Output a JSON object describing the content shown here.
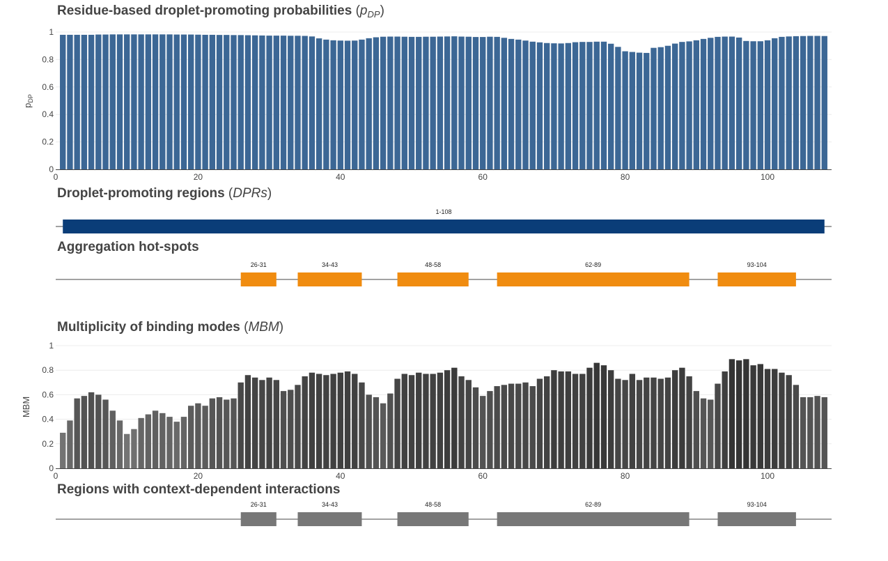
{
  "chart_data": [
    {
      "type": "bar",
      "id": "pdp",
      "title": "Residue-based droplet-promoting probabilities",
      "title_paren_var": "p",
      "title_paren_sub": "DP",
      "ylabel_main": "p",
      "ylabel_sub": "DP",
      "xlabel": "",
      "xlim": [
        0,
        109
      ],
      "ylim": [
        0,
        1
      ],
      "xticks": [
        0,
        20,
        40,
        60,
        80,
        100
      ],
      "yticks": [
        "0",
        "0.2",
        "0.4",
        "0.6",
        "0.8",
        "1"
      ],
      "grid": true,
      "color": "#3c6795",
      "x": [
        1,
        2,
        3,
        4,
        5,
        6,
        7,
        8,
        9,
        10,
        11,
        12,
        13,
        14,
        15,
        16,
        17,
        18,
        19,
        20,
        21,
        22,
        23,
        24,
        25,
        26,
        27,
        28,
        29,
        30,
        31,
        32,
        33,
        34,
        35,
        36,
        37,
        38,
        39,
        40,
        41,
        42,
        43,
        44,
        45,
        46,
        47,
        48,
        49,
        50,
        51,
        52,
        53,
        54,
        55,
        56,
        57,
        58,
        59,
        60,
        61,
        62,
        63,
        64,
        65,
        66,
        67,
        68,
        69,
        70,
        71,
        72,
        73,
        74,
        75,
        76,
        77,
        78,
        79,
        80,
        81,
        82,
        83,
        84,
        85,
        86,
        87,
        88,
        89,
        90,
        91,
        92,
        93,
        94,
        95,
        96,
        97,
        98,
        99,
        100,
        101,
        102,
        103,
        104,
        105,
        106,
        107,
        108
      ],
      "values": [
        0.98,
        0.98,
        0.98,
        0.98,
        0.98,
        0.982,
        0.982,
        0.983,
        0.983,
        0.983,
        0.983,
        0.983,
        0.983,
        0.983,
        0.983,
        0.983,
        0.982,
        0.982,
        0.982,
        0.981,
        0.98,
        0.98,
        0.979,
        0.979,
        0.978,
        0.978,
        0.977,
        0.976,
        0.975,
        0.974,
        0.974,
        0.974,
        0.973,
        0.973,
        0.972,
        0.968,
        0.954,
        0.945,
        0.94,
        0.938,
        0.937,
        0.938,
        0.945,
        0.955,
        0.962,
        0.966,
        0.967,
        0.967,
        0.966,
        0.965,
        0.965,
        0.966,
        0.966,
        0.967,
        0.968,
        0.969,
        0.967,
        0.966,
        0.964,
        0.964,
        0.966,
        0.965,
        0.958,
        0.95,
        0.945,
        0.938,
        0.93,
        0.925,
        0.92,
        0.918,
        0.917,
        0.92,
        0.926,
        0.928,
        0.928,
        0.93,
        0.93,
        0.915,
        0.892,
        0.86,
        0.855,
        0.85,
        0.848,
        0.885,
        0.89,
        0.9,
        0.916,
        0.928,
        0.932,
        0.94,
        0.95,
        0.958,
        0.965,
        0.967,
        0.967,
        0.96,
        0.935,
        0.933,
        0.933,
        0.94,
        0.955,
        0.965,
        0.968,
        0.97,
        0.971,
        0.972,
        0.972,
        0.971
      ]
    },
    {
      "type": "segments",
      "id": "dpr",
      "title": "Droplet-promoting regions",
      "title_paren_var": "DPRs",
      "color": "#0a3d78",
      "xlim": [
        0,
        109
      ],
      "segments": [
        {
          "start": 1,
          "end": 108,
          "label": "1-108"
        }
      ]
    },
    {
      "type": "segments",
      "id": "hotspots",
      "title": "Aggregation hot-spots",
      "color": "#f08c10",
      "xlim": [
        0,
        109
      ],
      "segments": [
        {
          "start": 26,
          "end": 31,
          "label": "26-31"
        },
        {
          "start": 34,
          "end": 43,
          "label": "34-43"
        },
        {
          "start": 48,
          "end": 58,
          "label": "48-58"
        },
        {
          "start": 62,
          "end": 89,
          "label": "62-89"
        },
        {
          "start": 93,
          "end": 104,
          "label": "93-104"
        }
      ]
    },
    {
      "type": "bar",
      "id": "mbm",
      "title": "Multiplicity of binding modes",
      "title_paren_var": "MBM",
      "ylabel_main": "MBM",
      "ylabel_sub": "",
      "xlabel": "",
      "xlim": [
        0,
        109
      ],
      "ylim": [
        0,
        1
      ],
      "xticks": [
        0,
        20,
        40,
        60,
        80,
        100
      ],
      "yticks": [
        "0",
        "0.2",
        "0.4",
        "0.6",
        "0.8",
        "1"
      ],
      "grid": true,
      "color_scale": [
        "#777777",
        "#333333"
      ],
      "x": [
        1,
        2,
        3,
        4,
        5,
        6,
        7,
        8,
        9,
        10,
        11,
        12,
        13,
        14,
        15,
        16,
        17,
        18,
        19,
        20,
        21,
        22,
        23,
        24,
        25,
        26,
        27,
        28,
        29,
        30,
        31,
        32,
        33,
        34,
        35,
        36,
        37,
        38,
        39,
        40,
        41,
        42,
        43,
        44,
        45,
        46,
        47,
        48,
        49,
        50,
        51,
        52,
        53,
        54,
        55,
        56,
        57,
        58,
        59,
        60,
        61,
        62,
        63,
        64,
        65,
        66,
        67,
        68,
        69,
        70,
        71,
        72,
        73,
        74,
        75,
        76,
        77,
        78,
        79,
        80,
        81,
        82,
        83,
        84,
        85,
        86,
        87,
        88,
        89,
        90,
        91,
        92,
        93,
        94,
        95,
        96,
        97,
        98,
        99,
        100,
        101,
        102,
        103,
        104,
        105,
        106,
        107,
        108
      ],
      "values": [
        0.29,
        0.39,
        0.57,
        0.59,
        0.62,
        0.6,
        0.56,
        0.47,
        0.39,
        0.28,
        0.32,
        0.41,
        0.44,
        0.47,
        0.45,
        0.42,
        0.38,
        0.42,
        0.51,
        0.53,
        0.51,
        0.57,
        0.58,
        0.56,
        0.57,
        0.7,
        0.76,
        0.74,
        0.72,
        0.74,
        0.72,
        0.63,
        0.64,
        0.68,
        0.75,
        0.78,
        0.77,
        0.76,
        0.77,
        0.78,
        0.79,
        0.77,
        0.7,
        0.6,
        0.58,
        0.53,
        0.61,
        0.73,
        0.77,
        0.76,
        0.78,
        0.77,
        0.77,
        0.78,
        0.8,
        0.82,
        0.75,
        0.72,
        0.66,
        0.59,
        0.63,
        0.67,
        0.68,
        0.69,
        0.69,
        0.7,
        0.67,
        0.73,
        0.75,
        0.8,
        0.79,
        0.79,
        0.77,
        0.77,
        0.82,
        0.86,
        0.84,
        0.8,
        0.73,
        0.72,
        0.77,
        0.72,
        0.74,
        0.74,
        0.73,
        0.74,
        0.8,
        0.82,
        0.75,
        0.63,
        0.57,
        0.56,
        0.69,
        0.79,
        0.89,
        0.88,
        0.89,
        0.84,
        0.85,
        0.81,
        0.81,
        0.78,
        0.76,
        0.68,
        0.58,
        0.58,
        0.59,
        0.58
      ]
    },
    {
      "type": "segments",
      "id": "context",
      "title": "Regions with context-dependent interactions",
      "color": "#777777",
      "xlim": [
        0,
        109
      ],
      "segments": [
        {
          "start": 26,
          "end": 31,
          "label": "26-31"
        },
        {
          "start": 34,
          "end": 43,
          "label": "34-43"
        },
        {
          "start": 48,
          "end": 58,
          "label": "48-58"
        },
        {
          "start": 62,
          "end": 89,
          "label": "62-89"
        },
        {
          "start": 93,
          "end": 104,
          "label": "93-104"
        }
      ]
    }
  ]
}
